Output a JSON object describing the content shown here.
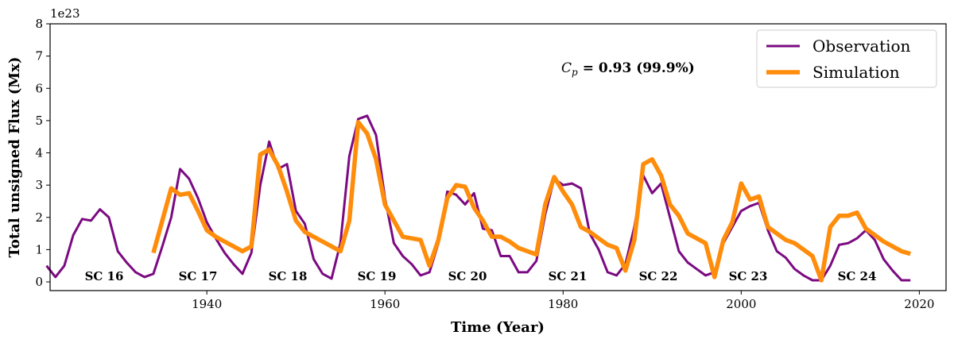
{
  "chart_data": {
    "type": "line",
    "xlabel": "Time (Year)",
    "ylabel": "Total unsigned Flux (Mx)",
    "y_offset_label": "1e23",
    "xlim": [
      1922.4,
      2023
    ],
    "ylim": [
      -0.27,
      8
    ],
    "xticks": [
      1940,
      1960,
      1980,
      2000,
      2020
    ],
    "yticks": [
      0,
      1,
      2,
      3,
      4,
      5,
      6,
      7,
      8
    ],
    "legend": "upper right",
    "annotation": {
      "symbol": "C",
      "subscript": "p",
      "text": "= 0.93 (99.9%)"
    },
    "cycle_labels": [
      "SC 16",
      "SC 17",
      "SC 18",
      "SC 19",
      "SC 20",
      "SC 21",
      "SC 22",
      "SC 23",
      "SC 24"
    ],
    "series": [
      {
        "name": "Observation",
        "color": "#7b0a82",
        "x": [
          1922,
          1923,
          1924,
          1925,
          1926,
          1927,
          1928,
          1929,
          1930,
          1931,
          1932,
          1933,
          1934,
          1935,
          1936,
          1937,
          1938,
          1939,
          1940,
          1941,
          1942,
          1943,
          1944,
          1945,
          1946,
          1947,
          1948,
          1949,
          1950,
          1951,
          1952,
          1953,
          1954,
          1955,
          1956,
          1957,
          1958,
          1959,
          1960,
          1961,
          1962,
          1963,
          1964,
          1965,
          1966,
          1967,
          1968,
          1969,
          1970,
          1971,
          1972,
          1973,
          1974,
          1975,
          1976,
          1977,
          1978,
          1979,
          1980,
          1981,
          1982,
          1983,
          1984,
          1985,
          1986,
          1987,
          1988,
          1989,
          1990,
          1991,
          1992,
          1993,
          1994,
          1995,
          1996,
          1997,
          1998,
          1999,
          2000,
          2001,
          2002,
          2003,
          2004,
          2005,
          2006,
          2007,
          2008,
          2009,
          2010,
          2011,
          2012,
          2013,
          2014,
          2015,
          2016,
          2017,
          2018,
          2019
        ],
        "values": [
          0.5,
          0.15,
          0.5,
          1.45,
          1.95,
          1.9,
          2.25,
          2.0,
          0.95,
          0.6,
          0.3,
          0.15,
          0.25,
          1.1,
          2.0,
          3.5,
          3.2,
          2.6,
          1.85,
          1.35,
          0.9,
          0.55,
          0.25,
          0.9,
          3.0,
          4.35,
          3.5,
          3.65,
          2.2,
          1.8,
          0.7,
          0.25,
          0.1,
          1.2,
          3.9,
          5.05,
          5.15,
          4.55,
          2.6,
          1.2,
          0.8,
          0.55,
          0.2,
          0.3,
          1.2,
          2.8,
          2.7,
          2.4,
          2.75,
          1.65,
          1.6,
          0.8,
          0.8,
          0.3,
          0.3,
          0.65,
          2.1,
          3.2,
          3.0,
          3.05,
          2.9,
          1.5,
          1.0,
          0.3,
          0.2,
          0.55,
          1.7,
          3.3,
          2.75,
          3.05,
          2.0,
          0.95,
          0.6,
          0.4,
          0.2,
          0.3,
          1.2,
          1.7,
          2.2,
          2.35,
          2.45,
          1.6,
          0.95,
          0.75,
          0.4,
          0.2,
          0.05,
          0.05,
          0.5,
          1.15,
          1.2,
          1.35,
          1.6,
          1.3,
          0.7,
          0.35,
          0.05,
          0.05
        ]
      },
      {
        "name": "Simulation",
        "color": "#ff8c0a",
        "x": [
          1934,
          1935,
          1936,
          1937,
          1938,
          1939,
          1940,
          1941,
          1942,
          1943,
          1944,
          1945,
          1946,
          1947,
          1948,
          1949,
          1950,
          1951,
          1952,
          1953,
          1954,
          1955,
          1956,
          1957,
          1958,
          1959,
          1960,
          1961,
          1962,
          1963,
          1964,
          1965,
          1966,
          1967,
          1968,
          1969,
          1970,
          1971,
          1972,
          1973,
          1974,
          1975,
          1976,
          1977,
          1978,
          1979,
          1980,
          1981,
          1982,
          1983,
          1984,
          1985,
          1986,
          1987,
          1988,
          1989,
          1990,
          1991,
          1992,
          1993,
          1994,
          1995,
          1996,
          1997,
          1998,
          1999,
          2000,
          2001,
          2002,
          2003,
          2004,
          2005,
          2006,
          2007,
          2008,
          2009,
          2010,
          2011,
          2012,
          2013,
          2014,
          2015,
          2016,
          2017,
          2018,
          2019
        ],
        "values": [
          0.9,
          1.9,
          2.9,
          2.7,
          2.75,
          2.2,
          1.6,
          1.4,
          1.25,
          1.1,
          0.95,
          1.1,
          3.95,
          4.1,
          3.6,
          2.8,
          1.9,
          1.55,
          1.4,
          1.25,
          1.1,
          0.95,
          1.9,
          4.95,
          4.6,
          3.8,
          2.4,
          1.9,
          1.4,
          1.35,
          1.3,
          0.5,
          1.3,
          2.6,
          3.0,
          2.95,
          2.3,
          1.9,
          1.4,
          1.4,
          1.25,
          1.05,
          0.95,
          0.85,
          2.4,
          3.25,
          2.8,
          2.4,
          1.7,
          1.55,
          1.35,
          1.15,
          1.05,
          0.35,
          1.3,
          3.65,
          3.8,
          3.3,
          2.4,
          2.05,
          1.5,
          1.35,
          1.2,
          0.15,
          1.3,
          1.85,
          3.05,
          2.55,
          2.65,
          1.7,
          1.5,
          1.3,
          1.2,
          1.0,
          0.8,
          0.05,
          1.7,
          2.05,
          2.05,
          2.15,
          1.65,
          1.45,
          1.25,
          1.1,
          0.95,
          0.87
        ]
      }
    ]
  }
}
